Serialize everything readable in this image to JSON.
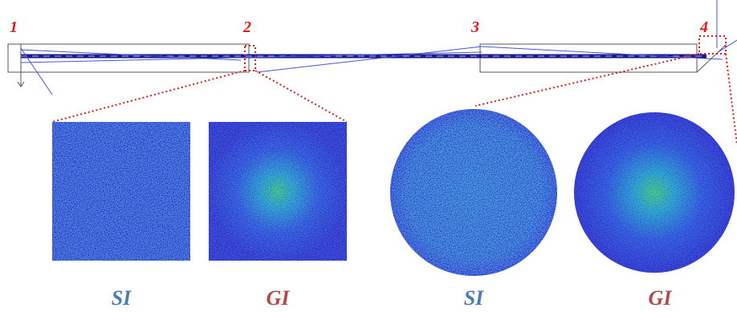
{
  "markers": [
    "1",
    "2",
    "3",
    "4"
  ],
  "panels": [
    {
      "label": "SI"
    },
    {
      "label": "GI"
    },
    {
      "label": "SI"
    },
    {
      "label": "GI"
    }
  ]
}
